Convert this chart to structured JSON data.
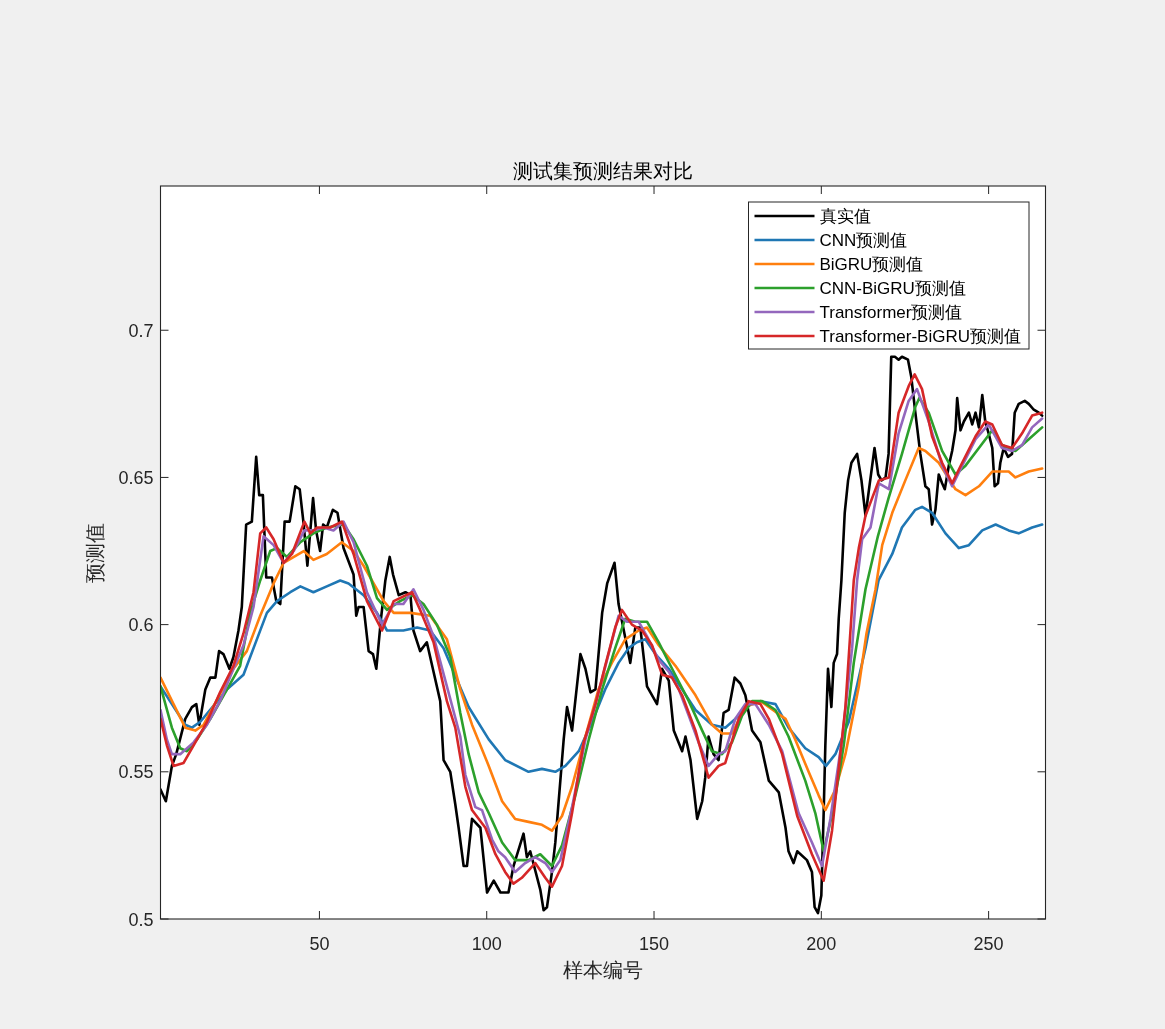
{
  "chart_data": {
    "type": "line",
    "title": "测试集预测结果对比",
    "xlabel": "样本编号",
    "ylabel": "预测值",
    "xlim": [
      2.5,
      267
    ],
    "ylim": [
      0.5,
      0.749
    ],
    "xticks": [
      50,
      100,
      150,
      200,
      250
    ],
    "yticks": [
      0.5,
      0.55,
      0.6,
      0.65,
      0.7
    ],
    "legend": "top right",
    "series": [
      {
        "name": "真实值",
        "color": "#000000",
        "x": [
          2.5,
          4.1,
          5.9,
          7.2,
          9.9,
          11.9,
          13.2,
          14.1,
          15.9,
          17.4,
          18.9,
          20.0,
          21.3,
          23.1,
          24.3,
          25.8,
          26.8,
          28.1,
          29.8,
          31.1,
          32.0,
          33.1,
          34.1,
          35.8,
          37.1,
          38.3,
          39.6,
          41.1,
          42.8,
          44.1,
          45.3,
          46.4,
          48.1,
          49.0,
          50.2,
          51.1,
          52.2,
          54.0,
          55.4,
          57.2,
          60.2,
          61.0,
          61.7,
          63.2,
          64.7,
          66.0,
          67.0,
          68.4,
          69.7,
          71.0,
          72.0,
          73.7,
          75.7,
          77.2,
          78.1,
          80.1,
          82.1,
          84.1,
          86.1,
          87.1,
          89.1,
          90.6,
          91.6,
          93.1,
          94.1,
          95.6,
          98.1,
          100.1,
          102.1,
          104.1,
          106.5,
          108.0,
          111.0,
          112.0,
          113.0,
          116.0,
          117.0,
          118.0,
          119.5,
          120.5,
          123.0,
          124.0,
          125.5,
          128.0,
          129.5,
          131.0,
          132.5,
          134.5,
          136.0,
          138.2,
          139.4,
          142.9,
          144.4,
          145.9,
          147.9,
          150.9,
          152.4,
          154.4,
          155.9,
          158.4,
          159.4,
          160.9,
          162.9,
          164.4,
          165.3,
          166.3,
          167.8,
          169.3,
          170.8,
          172.3,
          174.1,
          175.8,
          177.3,
          179.3,
          181.8,
          184.3,
          187.3,
          189.3,
          190.2,
          191.7,
          192.8,
          195.7,
          197.2,
          198.0,
          199.0,
          200.0,
          200.7,
          201.2,
          202.0,
          203.0,
          203.7,
          204.7,
          205.2,
          206.0,
          207.0,
          208.0,
          209.0,
          210.7,
          212.0,
          213.2,
          215.9,
          217.0,
          218.0,
          219.2,
          220.1,
          220.9,
          222.0,
          223.1,
          224.1,
          225.9,
          226.9,
          228.1,
          229.6,
          231.1,
          232.1,
          233.1,
          234.1,
          235.1,
          236.1,
          236.9,
          238.1,
          239.1,
          240.1,
          240.6,
          241.6,
          242.6,
          244.1,
          245.1,
          246.1,
          247.1,
          248.1,
          249.0,
          250.0,
          251.1,
          251.8,
          252.8,
          253.5,
          254.5,
          255.8,
          257.0,
          257.8,
          259.0,
          260.8,
          262.0,
          263.5,
          265.0,
          266.0
        ],
        "values": [
          0.544,
          0.54,
          0.552,
          0.556,
          0.568,
          0.572,
          0.573,
          0.566,
          0.578,
          0.582,
          0.582,
          0.591,
          0.59,
          0.585,
          0.589,
          0.598,
          0.606,
          0.634,
          0.635,
          0.657,
          0.644,
          0.644,
          0.616,
          0.616,
          0.608,
          0.607,
          0.635,
          0.635,
          0.647,
          0.646,
          0.634,
          0.62,
          0.643,
          0.632,
          0.625,
          0.634,
          0.633,
          0.639,
          0.638,
          0.626,
          0.617,
          0.603,
          0.606,
          0.606,
          0.591,
          0.59,
          0.585,
          0.602,
          0.615,
          0.623,
          0.617,
          0.61,
          0.611,
          0.61,
          0.598,
          0.591,
          0.594,
          0.584,
          0.574,
          0.554,
          0.55,
          0.539,
          0.531,
          0.518,
          0.518,
          0.534,
          0.531,
          0.509,
          0.513,
          0.509,
          0.509,
          0.518,
          0.529,
          0.521,
          0.523,
          0.51,
          0.503,
          0.504,
          0.516,
          0.526,
          0.561,
          0.572,
          0.564,
          0.59,
          0.585,
          0.577,
          0.578,
          0.604,
          0.614,
          0.621,
          0.607,
          0.587,
          0.599,
          0.599,
          0.579,
          0.573,
          0.585,
          0.581,
          0.564,
          0.557,
          0.562,
          0.554,
          0.534,
          0.54,
          0.548,
          0.562,
          0.556,
          0.554,
          0.57,
          0.571,
          0.582,
          0.58,
          0.576,
          0.564,
          0.56,
          0.547,
          0.543,
          0.531,
          0.523,
          0.519,
          0.523,
          0.52,
          0.516,
          0.504,
          0.502,
          0.508,
          0.536,
          0.559,
          0.585,
          0.572,
          0.587,
          0.59,
          0.602,
          0.615,
          0.638,
          0.649,
          0.655,
          0.658,
          0.649,
          0.637,
          0.66,
          0.651,
          0.649,
          0.65,
          0.658,
          0.691,
          0.691,
          0.69,
          0.691,
          0.69,
          0.684,
          0.672,
          0.658,
          0.647,
          0.646,
          0.634,
          0.639,
          0.651,
          0.648,
          0.646,
          0.654,
          0.659,
          0.666,
          0.677,
          0.666,
          0.669,
          0.672,
          0.668,
          0.672,
          0.667,
          0.678,
          0.669,
          0.665,
          0.66,
          0.647,
          0.648,
          0.655,
          0.66,
          0.657,
          0.658,
          0.672,
          0.675,
          0.676,
          0.675,
          0.673,
          0.672,
          0.671
        ]
      },
      {
        "name": "CNN预测值",
        "color": "#1f77b4",
        "x": [
          2.5,
          9.9,
          11.9,
          14.4,
          22.4,
          27.3,
          31.3,
          34.3,
          37.3,
          41.3,
          44.3,
          48.2,
          52.2,
          56.2,
          58.7,
          63.2,
          67.2,
          70.2,
          75.1,
          79.2,
          83.1,
          87.1,
          94.6,
          100.6,
          105.5,
          112.5,
          116.5,
          120.5,
          123.5,
          127.5,
          131.5,
          135.4,
          139.4,
          142.4,
          144.9,
          147.4,
          150.4,
          154.4,
          158.4,
          162.4,
          167.3,
          171.3,
          175.3,
          178.3,
          181.8,
          186.3,
          190.2,
          195.2,
          199.2,
          201.4,
          204.2,
          208.2,
          213.2,
          217.1,
          221.2,
          224.1,
          228.1,
          230.1,
          233.1,
          237.1,
          241.1,
          244.1,
          248.1,
          252.1,
          256.0,
          259.0,
          263.0,
          266.0
        ],
        "values": [
          0.579,
          0.566,
          0.565,
          0.567,
          0.578,
          0.583,
          0.595,
          0.604,
          0.608,
          0.611,
          0.613,
          0.611,
          0.613,
          0.615,
          0.614,
          0.61,
          0.604,
          0.598,
          0.598,
          0.599,
          0.598,
          0.592,
          0.572,
          0.561,
          0.554,
          0.55,
          0.551,
          0.55,
          0.552,
          0.557,
          0.567,
          0.578,
          0.587,
          0.592,
          0.594,
          0.595,
          0.59,
          0.585,
          0.578,
          0.571,
          0.566,
          0.565,
          0.569,
          0.573,
          0.574,
          0.573,
          0.565,
          0.558,
          0.555,
          0.552,
          0.556,
          0.567,
          0.592,
          0.615,
          0.624,
          0.633,
          0.639,
          0.64,
          0.638,
          0.631,
          0.626,
          0.627,
          0.632,
          0.634,
          0.632,
          0.631,
          0.633,
          0.634
        ]
      },
      {
        "name": "BiGRU预测值",
        "color": "#ff7f0e",
        "x": [
          2.5,
          6.4,
          9.9,
          12.9,
          15.4,
          24.3,
          28.3,
          32.3,
          36.3,
          39.3,
          45.3,
          48.2,
          52.2,
          56.7,
          60.2,
          63.2,
          69.2,
          72.2,
          77.2,
          83.1,
          88.1,
          92.1,
          95.6,
          100.6,
          104.6,
          108.5,
          112.5,
          116.5,
          119.5,
          122.5,
          125.5,
          129.5,
          133.4,
          137.4,
          141.4,
          145.4,
          147.9,
          151.4,
          156.4,
          162.4,
          167.3,
          170.3,
          173.3,
          177.3,
          181.8,
          189.3,
          192.2,
          196.2,
          199.2,
          201.2,
          204.2,
          207.2,
          211.2,
          213.5,
          216.2,
          218.2,
          221.2,
          225.1,
          229.1,
          231.1,
          235.1,
          240.1,
          243.1,
          247.1,
          251.1,
          256.0,
          258.0,
          262.0,
          266.0
        ],
        "values": [
          0.582,
          0.573,
          0.565,
          0.564,
          0.566,
          0.585,
          0.591,
          0.603,
          0.614,
          0.621,
          0.625,
          0.622,
          0.624,
          0.628,
          0.625,
          0.62,
          0.608,
          0.604,
          0.604,
          0.603,
          0.595,
          0.578,
          0.566,
          0.552,
          0.54,
          0.534,
          0.533,
          0.532,
          0.53,
          0.535,
          0.545,
          0.562,
          0.578,
          0.587,
          0.595,
          0.598,
          0.599,
          0.593,
          0.586,
          0.576,
          0.566,
          0.563,
          0.563,
          0.572,
          0.574,
          0.568,
          0.561,
          0.55,
          0.542,
          0.537,
          0.544,
          0.556,
          0.579,
          0.597,
          0.612,
          0.627,
          0.638,
          0.649,
          0.66,
          0.659,
          0.655,
          0.646,
          0.644,
          0.647,
          0.652,
          0.652,
          0.65,
          0.652,
          0.653
        ]
      },
      {
        "name": "CNN-BiGRU预测值",
        "color": "#2ca02c",
        "x": [
          2.5,
          5.9,
          8.4,
          10.4,
          13.4,
          17.4,
          22.4,
          26.3,
          29.3,
          32.3,
          35.3,
          37.3,
          40.3,
          44.3,
          48.2,
          52.2,
          57.2,
          60.2,
          64.2,
          67.2,
          70.2,
          74.1,
          77.7,
          81.1,
          85.1,
          89.1,
          92.1,
          94.6,
          97.6,
          100.6,
          104.6,
          108.5,
          112.5,
          116.0,
          119.5,
          122.5,
          126.5,
          130.5,
          134.5,
          138.4,
          141.4,
          144.4,
          147.9,
          151.4,
          155.4,
          160.4,
          164.4,
          167.3,
          170.3,
          173.3,
          176.3,
          179.3,
          182.3,
          186.3,
          190.2,
          195.2,
          198.2,
          200.7,
          203.7,
          206.7,
          209.7,
          213.2,
          216.9,
          220.1,
          224.1,
          228.1,
          229.3,
          232.1,
          236.1,
          240.1,
          243.1,
          247.1,
          251.1,
          254.0,
          258.0,
          262.0,
          266.0
        ],
        "values": [
          0.579,
          0.565,
          0.558,
          0.557,
          0.561,
          0.568,
          0.578,
          0.586,
          0.604,
          0.615,
          0.625,
          0.626,
          0.623,
          0.628,
          0.631,
          0.633,
          0.634,
          0.629,
          0.62,
          0.609,
          0.605,
          0.608,
          0.61,
          0.607,
          0.6,
          0.589,
          0.57,
          0.556,
          0.543,
          0.536,
          0.526,
          0.52,
          0.52,
          0.522,
          0.518,
          0.525,
          0.542,
          0.561,
          0.578,
          0.592,
          0.602,
          0.601,
          0.601,
          0.594,
          0.585,
          0.574,
          0.564,
          0.557,
          0.556,
          0.56,
          0.569,
          0.574,
          0.574,
          0.571,
          0.562,
          0.547,
          0.536,
          0.523,
          0.538,
          0.559,
          0.587,
          0.612,
          0.63,
          0.643,
          0.658,
          0.674,
          0.677,
          0.672,
          0.659,
          0.651,
          0.654,
          0.66,
          0.666,
          0.661,
          0.659,
          0.663,
          0.667
        ]
      },
      {
        "name": "Transformer预测值",
        "color": "#9467bd",
        "x": [
          2.5,
          4.4,
          5.9,
          8.4,
          12.4,
          16.4,
          20.3,
          24.3,
          27.3,
          30.3,
          33.3,
          36.3,
          39.3,
          42.3,
          45.5,
          48.2,
          51.2,
          54.2,
          57.2,
          60.2,
          64.2,
          68.7,
          72.2,
          75.1,
          78.1,
          81.1,
          84.1,
          88.1,
          92.1,
          93.6,
          96.6,
          98.6,
          101.6,
          103.5,
          105.5,
          108.5,
          111.5,
          114.5,
          117.5,
          119.5,
          122.0,
          125.5,
          129.5,
          132.5,
          136.4,
          139.4,
          141.9,
          145.4,
          147.9,
          151.4,
          154.4,
          157.4,
          160.4,
          163.3,
          166.3,
          169.3,
          171.3,
          174.3,
          177.3,
          180.3,
          184.3,
          188.3,
          193.2,
          197.2,
          200.2,
          202.7,
          206.2,
          209.2,
          210.7,
          212.2,
          214.7,
          217.2,
          220.2,
          223.1,
          226.1,
          228.6,
          232.1,
          236.1,
          239.1,
          242.1,
          246.1,
          250.0,
          254.0,
          257.0,
          260.0,
          263.0,
          266.0
        ],
        "values": [
          0.571,
          0.561,
          0.556,
          0.556,
          0.56,
          0.566,
          0.574,
          0.585,
          0.593,
          0.606,
          0.63,
          0.627,
          0.621,
          0.625,
          0.632,
          0.632,
          0.633,
          0.632,
          0.635,
          0.628,
          0.611,
          0.6,
          0.607,
          0.607,
          0.612,
          0.605,
          0.596,
          0.579,
          0.562,
          0.549,
          0.538,
          0.537,
          0.527,
          0.523,
          0.521,
          0.516,
          0.519,
          0.521,
          0.519,
          0.516,
          0.52,
          0.538,
          0.561,
          0.573,
          0.59,
          0.603,
          0.601,
          0.601,
          0.596,
          0.588,
          0.584,
          0.578,
          0.569,
          0.56,
          0.552,
          0.556,
          0.557,
          0.568,
          0.573,
          0.573,
          0.566,
          0.557,
          0.536,
          0.526,
          0.518,
          0.534,
          0.561,
          0.592,
          0.615,
          0.629,
          0.633,
          0.648,
          0.646,
          0.665,
          0.676,
          0.68,
          0.669,
          0.654,
          0.647,
          0.654,
          0.663,
          0.668,
          0.66,
          0.659,
          0.661,
          0.667,
          0.67
        ]
      },
      {
        "name": "Transformer-BiGRU预测值",
        "color": "#d62728",
        "x": [
          2.5,
          4.4,
          6.4,
          9.4,
          12.4,
          16.4,
          20.3,
          24.3,
          27.3,
          30.3,
          32.3,
          34.1,
          36.3,
          39.3,
          41.8,
          45.5,
          47.3,
          49.3,
          53.2,
          56.7,
          60.2,
          64.2,
          68.7,
          72.2,
          77.7,
          80.1,
          84.1,
          88.1,
          90.6,
          92.1,
          93.6,
          95.6,
          99.6,
          102.6,
          105.5,
          108.0,
          110.5,
          114.5,
          117.5,
          119.5,
          122.5,
          125.5,
          129.0,
          132.5,
          135.4,
          138.4,
          140.4,
          143.4,
          146.4,
          149.4,
          152.4,
          155.4,
          158.4,
          162.4,
          166.3,
          169.3,
          171.3,
          175.3,
          178.3,
          181.8,
          184.3,
          188.3,
          192.8,
          197.2,
          200.7,
          203.2,
          207.2,
          209.7,
          211.2,
          213.2,
          217.2,
          220.2,
          223.1,
          226.1,
          227.9,
          230.1,
          233.1,
          236.1,
          239.1,
          242.1,
          246.1,
          249.0,
          251.1,
          254.0,
          257.0,
          260.0,
          263.0,
          266.0
        ],
        "values": [
          0.568,
          0.559,
          0.552,
          0.553,
          0.559,
          0.567,
          0.577,
          0.586,
          0.597,
          0.611,
          0.631,
          0.633,
          0.629,
          0.621,
          0.624,
          0.635,
          0.631,
          0.633,
          0.633,
          0.635,
          0.624,
          0.608,
          0.598,
          0.608,
          0.611,
          0.605,
          0.594,
          0.574,
          0.565,
          0.555,
          0.545,
          0.537,
          0.531,
          0.522,
          0.516,
          0.512,
          0.514,
          0.519,
          0.514,
          0.511,
          0.518,
          0.536,
          0.56,
          0.573,
          0.586,
          0.599,
          0.605,
          0.6,
          0.598,
          0.593,
          0.583,
          0.582,
          0.576,
          0.564,
          0.548,
          0.552,
          0.553,
          0.568,
          0.574,
          0.573,
          0.568,
          0.556,
          0.535,
          0.522,
          0.513,
          0.53,
          0.572,
          0.615,
          0.626,
          0.637,
          0.649,
          0.65,
          0.672,
          0.681,
          0.685,
          0.68,
          0.664,
          0.655,
          0.648,
          0.655,
          0.664,
          0.669,
          0.668,
          0.661,
          0.66,
          0.665,
          0.671,
          0.672
        ]
      }
    ]
  }
}
